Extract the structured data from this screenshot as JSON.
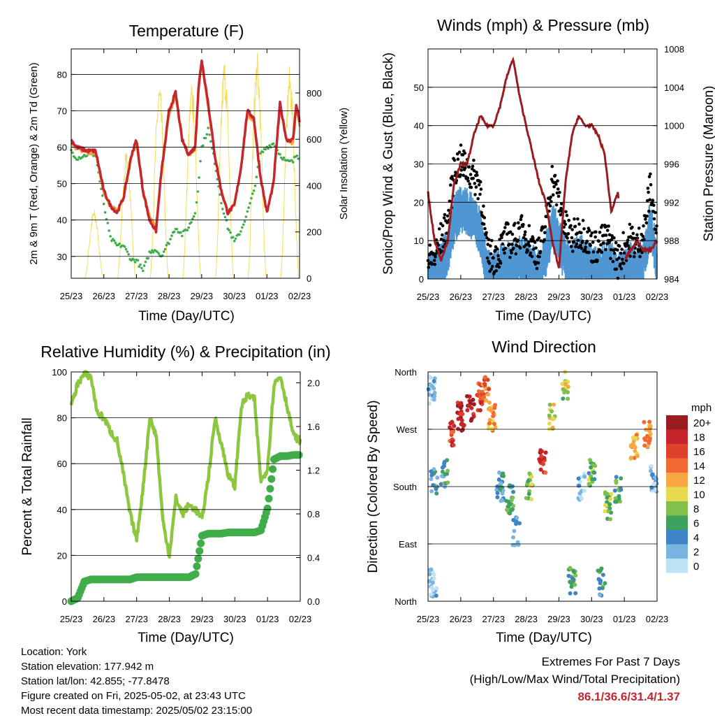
{
  "x_tick_labels": [
    "25/23",
    "26/23",
    "27/23",
    "28/23",
    "29/23",
    "30/23",
    "01/23",
    "02/23"
  ],
  "panels": {
    "temperature": {
      "title": "Temperature (F)",
      "xlabel": "Time (Day/UTC)",
      "ylabel_left": "2m & 9m T (Red, Orange) & 2m Td (Green)",
      "ylabel_right": "Solar Insolation (Yellow)",
      "left_ticks": [
        "30",
        "40",
        "50",
        "60",
        "70",
        "80"
      ],
      "right_ticks": [
        "0",
        "200",
        "400",
        "600",
        "800"
      ]
    },
    "wind": {
      "title": "Winds (mph) & Pressure (mb)",
      "xlabel": "Time (Day/UTC)",
      "ylabel_left": "Sonic/Prop Wind & Gust (Blue, Black)",
      "ylabel_right": "Station Pressure (Maroon)",
      "left_ticks": [
        "0",
        "10",
        "20",
        "30",
        "40",
        "50"
      ],
      "right_ticks": [
        "984",
        "988",
        "992",
        "996",
        "1000",
        "1004",
        "1008"
      ]
    },
    "humidity": {
      "title": "Relative Humidity (%) & Precipitation (in)",
      "xlabel": "Time (Day/UTC)",
      "ylabel_left": "Percent & Total Rainfall",
      "left_ticks": [
        "0",
        "20",
        "40",
        "60",
        "80",
        "100"
      ],
      "right_ticks": [
        "0.0",
        "0.4",
        "0.8",
        "1.2",
        "1.6",
        "2.0"
      ]
    },
    "direction": {
      "title": "Wind Direction",
      "xlabel": "Time (Day/UTC)",
      "ylabel_left": "Direction (Colored By Speed)",
      "dir_ticks": [
        "North",
        "East",
        "South",
        "West",
        "North"
      ],
      "legend_title": "mph",
      "legend": [
        {
          "label": "20+",
          "color": "#9a1c20"
        },
        {
          "label": "18",
          "color": "#c4242a"
        },
        {
          "label": "16",
          "color": "#e0412c"
        },
        {
          "label": "14",
          "color": "#f26a32"
        },
        {
          "label": "12",
          "color": "#f7a843"
        },
        {
          "label": "10",
          "color": "#e8da4e"
        },
        {
          "label": "8",
          "color": "#7fbf4a"
        },
        {
          "label": "6",
          "color": "#3ea160"
        },
        {
          "label": "4",
          "color": "#3f84c4"
        },
        {
          "label": "2",
          "color": "#7ab4e2"
        },
        {
          "label": "0",
          "color": "#bfe3f5"
        }
      ]
    }
  },
  "chart_data": [
    {
      "type": "line",
      "title": "Temperature (F)",
      "xlabel": "Time (Day/UTC)",
      "ylabel": "2m & 9m T (Red, Orange) & 2m Td (Green)",
      "y2label": "Solar Insolation (Yellow)",
      "x_days": [
        0,
        0.17,
        0.5,
        0.75,
        1,
        1.2,
        1.4,
        1.6,
        1.85,
        2,
        2.2,
        2.4,
        2.6,
        2.75,
        3,
        3.2,
        3.4,
        3.6,
        3.8,
        3.9,
        4,
        4.2,
        4.4,
        4.6,
        4.8,
        5,
        5.2,
        5.4,
        5.6,
        5.8,
        6,
        6.2,
        6.4,
        6.6,
        6.8,
        6.9,
        7
      ],
      "ylim": [
        24,
        87
      ],
      "y2lim": [
        0,
        990
      ],
      "series": [
        {
          "name": "2m T",
          "color": "#c8262e",
          "values": [
            62,
            60,
            59,
            59,
            48,
            44,
            42,
            46,
            58,
            62,
            48,
            40,
            37,
            52,
            70,
            75,
            62,
            58,
            60,
            76,
            84,
            72,
            58,
            48,
            42,
            44,
            54,
            70,
            68,
            52,
            42,
            50,
            72,
            62,
            62,
            72,
            67
          ]
        },
        {
          "name": "9m T",
          "color": "#f4a23a",
          "values": [
            61.5,
            59.5,
            58.5,
            58.5,
            47.5,
            44,
            42.5,
            46,
            57.5,
            61,
            48,
            41,
            38,
            52,
            69,
            74,
            62,
            58,
            59,
            75,
            83,
            71,
            58,
            48,
            42,
            44,
            54,
            69,
            67,
            52,
            42,
            50,
            71,
            62,
            61,
            71,
            66
          ]
        },
        {
          "name": "2m Td",
          "color": "#41ad4a",
          "values": [
            59,
            57,
            58,
            58,
            44,
            35,
            33,
            33,
            29,
            29,
            26,
            31,
            32,
            30,
            34,
            38,
            36,
            38,
            42,
            50,
            60,
            65,
            56,
            45,
            38,
            34,
            37,
            42,
            48,
            58,
            60,
            61,
            58,
            56,
            56,
            58,
            57
          ]
        },
        {
          "name": "Solar Insolation",
          "color": "#f5dd5a",
          "axis": "right",
          "peak_by_day": [
            300,
            550,
            850,
            850,
            960,
            980,
            920,
            650
          ]
        }
      ]
    },
    {
      "type": "line",
      "title": "Winds (mph) & Pressure (mb)",
      "xlabel": "Time (Day/UTC)",
      "ylabel": "Sonic/Prop Wind & Gust (Blue, Black)",
      "y2label": "Station Pressure (Maroon)",
      "x_days": [
        0,
        0.2,
        0.4,
        0.6,
        0.8,
        1,
        1.2,
        1.4,
        1.6,
        1.8,
        2,
        2.2,
        2.4,
        2.6,
        2.8,
        3,
        3.2,
        3.4,
        3.6,
        3.8,
        4,
        4.2,
        4.4,
        4.6,
        4.8,
        5,
        5.2,
        5.4,
        5.6,
        5.8,
        6,
        6.2,
        6.4,
        6.6,
        6.8,
        7
      ],
      "ylim": [
        0,
        60
      ],
      "y2lim": [
        984,
        1008
      ],
      "series": [
        {
          "name": "Wind",
          "color": "#4f97d3",
          "values": [
            2,
            3,
            5,
            9,
            17,
            20,
            19,
            17,
            14,
            3,
            3,
            4,
            6,
            5,
            7,
            6,
            4,
            3,
            8,
            15,
            12,
            6,
            5,
            7,
            6,
            4,
            4,
            5,
            5,
            2,
            4,
            5,
            4,
            7,
            16,
            6
          ]
        },
        {
          "name": "Gust",
          "color": "#000000",
          "values": [
            4,
            5,
            10,
            14,
            28,
            30,
            28,
            26,
            24,
            6,
            5,
            7,
            10,
            9,
            12,
            11,
            8,
            6,
            14,
            26,
            20,
            13,
            10,
            12,
            11,
            8,
            8,
            10,
            9,
            4,
            8,
            10,
            8,
            12,
            24,
            10
          ]
        },
        {
          "name": "Station Pressure",
          "color": "#9a1c20",
          "axis": "right",
          "values": [
            993,
            988,
            986,
            988,
            994,
            996,
            996,
            999,
            1001,
            1000,
            1000,
            1002,
            1005,
            1007,
            1003,
            1000,
            997,
            994,
            992,
            988,
            985,
            994,
            999,
            1001,
            1000,
            1000,
            999,
            997,
            991,
            993,
            986,
            987,
            988,
            987,
            987,
            988
          ]
        }
      ]
    },
    {
      "type": "line",
      "title": "Relative Humidity (%) & Precipitation (in)",
      "xlabel": "Time (Day/UTC)",
      "ylabel": "Percent & Total Rainfall",
      "x_days": [
        0,
        0.2,
        0.4,
        0.6,
        0.8,
        1,
        1.2,
        1.4,
        1.6,
        1.8,
        2,
        2.2,
        2.4,
        2.6,
        2.8,
        3,
        3.2,
        3.4,
        3.6,
        3.8,
        4,
        4.2,
        4.4,
        4.6,
        4.8,
        5,
        5.2,
        5.4,
        5.6,
        5.8,
        6,
        6.2,
        6.4,
        6.6,
        6.8,
        7
      ],
      "ylim": [
        0,
        100
      ],
      "y2lim": [
        0,
        2.1
      ],
      "series": [
        {
          "name": "Relative Humidity",
          "color": "#8dc63f",
          "values": [
            85,
            95,
            99,
            98,
            82,
            80,
            74,
            70,
            55,
            38,
            27,
            50,
            80,
            72,
            35,
            20,
            45,
            38,
            42,
            40,
            36,
            55,
            80,
            68,
            55,
            50,
            85,
            90,
            88,
            52,
            58,
            95,
            98,
            85,
            72,
            70
          ]
        },
        {
          "name": "Total Precipitation",
          "color": "#41ad4a",
          "axis": "right",
          "values": [
            0,
            0.03,
            0.18,
            0.2,
            0.2,
            0.2,
            0.2,
            0.2,
            0.2,
            0.2,
            0.22,
            0.22,
            0.22,
            0.22,
            0.22,
            0.22,
            0.22,
            0.22,
            0.22,
            0.25,
            0.6,
            0.62,
            0.62,
            0.62,
            0.63,
            0.63,
            0.63,
            0.63,
            0.63,
            0.65,
            0.85,
            1.3,
            1.33,
            1.33,
            1.34,
            1.34
          ]
        }
      ]
    },
    {
      "type": "scatter",
      "title": "Wind Direction",
      "xlabel": "Time (Day/UTC)",
      "ylabel": "Direction (Colored By Speed)",
      "y_categories": [
        "North",
        "East",
        "South",
        "West",
        "North"
      ],
      "ylim_degrees": [
        0,
        360
      ],
      "clusters": [
        {
          "x_day": 0.1,
          "deg": 330,
          "speed": 1
        },
        {
          "x_day": 0.2,
          "deg": 190,
          "speed": 5
        },
        {
          "x_day": 0.15,
          "deg": 30,
          "speed": 1
        },
        {
          "x_day": 0.5,
          "deg": 200,
          "speed": 5
        },
        {
          "x_day": 0.7,
          "deg": 265,
          "speed": 17
        },
        {
          "x_day": 1.0,
          "deg": 290,
          "speed": 18
        },
        {
          "x_day": 1.3,
          "deg": 305,
          "speed": 19
        },
        {
          "x_day": 1.6,
          "deg": 320,
          "speed": 16
        },
        {
          "x_day": 1.75,
          "deg": 335,
          "speed": 14
        },
        {
          "x_day": 1.95,
          "deg": 290,
          "speed": 12
        },
        {
          "x_day": 2.2,
          "deg": 180,
          "speed": 4
        },
        {
          "x_day": 2.5,
          "deg": 160,
          "speed": 6
        },
        {
          "x_day": 2.7,
          "deg": 110,
          "speed": 3
        },
        {
          "x_day": 3.1,
          "deg": 180,
          "speed": 8
        },
        {
          "x_day": 3.5,
          "deg": 220,
          "speed": 17
        },
        {
          "x_day": 3.8,
          "deg": 290,
          "speed": 10
        },
        {
          "x_day": 4.2,
          "deg": 340,
          "speed": 9
        },
        {
          "x_day": 4.4,
          "deg": 30,
          "speed": 6
        },
        {
          "x_day": 4.7,
          "deg": 180,
          "speed": 2
        },
        {
          "x_day": 5.0,
          "deg": 200,
          "speed": 7
        },
        {
          "x_day": 5.3,
          "deg": 30,
          "speed": 5
        },
        {
          "x_day": 5.5,
          "deg": 150,
          "speed": 8
        },
        {
          "x_day": 5.8,
          "deg": 175,
          "speed": 6
        },
        {
          "x_day": 6.3,
          "deg": 240,
          "speed": 11
        },
        {
          "x_day": 6.7,
          "deg": 260,
          "speed": 13
        },
        {
          "x_day": 6.9,
          "deg": 190,
          "speed": 2
        }
      ]
    }
  ],
  "info": {
    "location": "Location: York",
    "elevation": "Station elevation: 177.942 m",
    "latlon": "Station lat/lon: 42.855; -77.8478",
    "created": "Figure created on Fri, 2025-05-02, at 23:43 UTC",
    "recent": "Most recent data timestamp: 2025/05/02 23:15:00"
  },
  "extremes": {
    "line1": "Extremes For Past 7 Days",
    "line2": "(High/Low/Max Wind/Total Precipitation)",
    "values": "86.1/36.6/31.4/1.37"
  }
}
